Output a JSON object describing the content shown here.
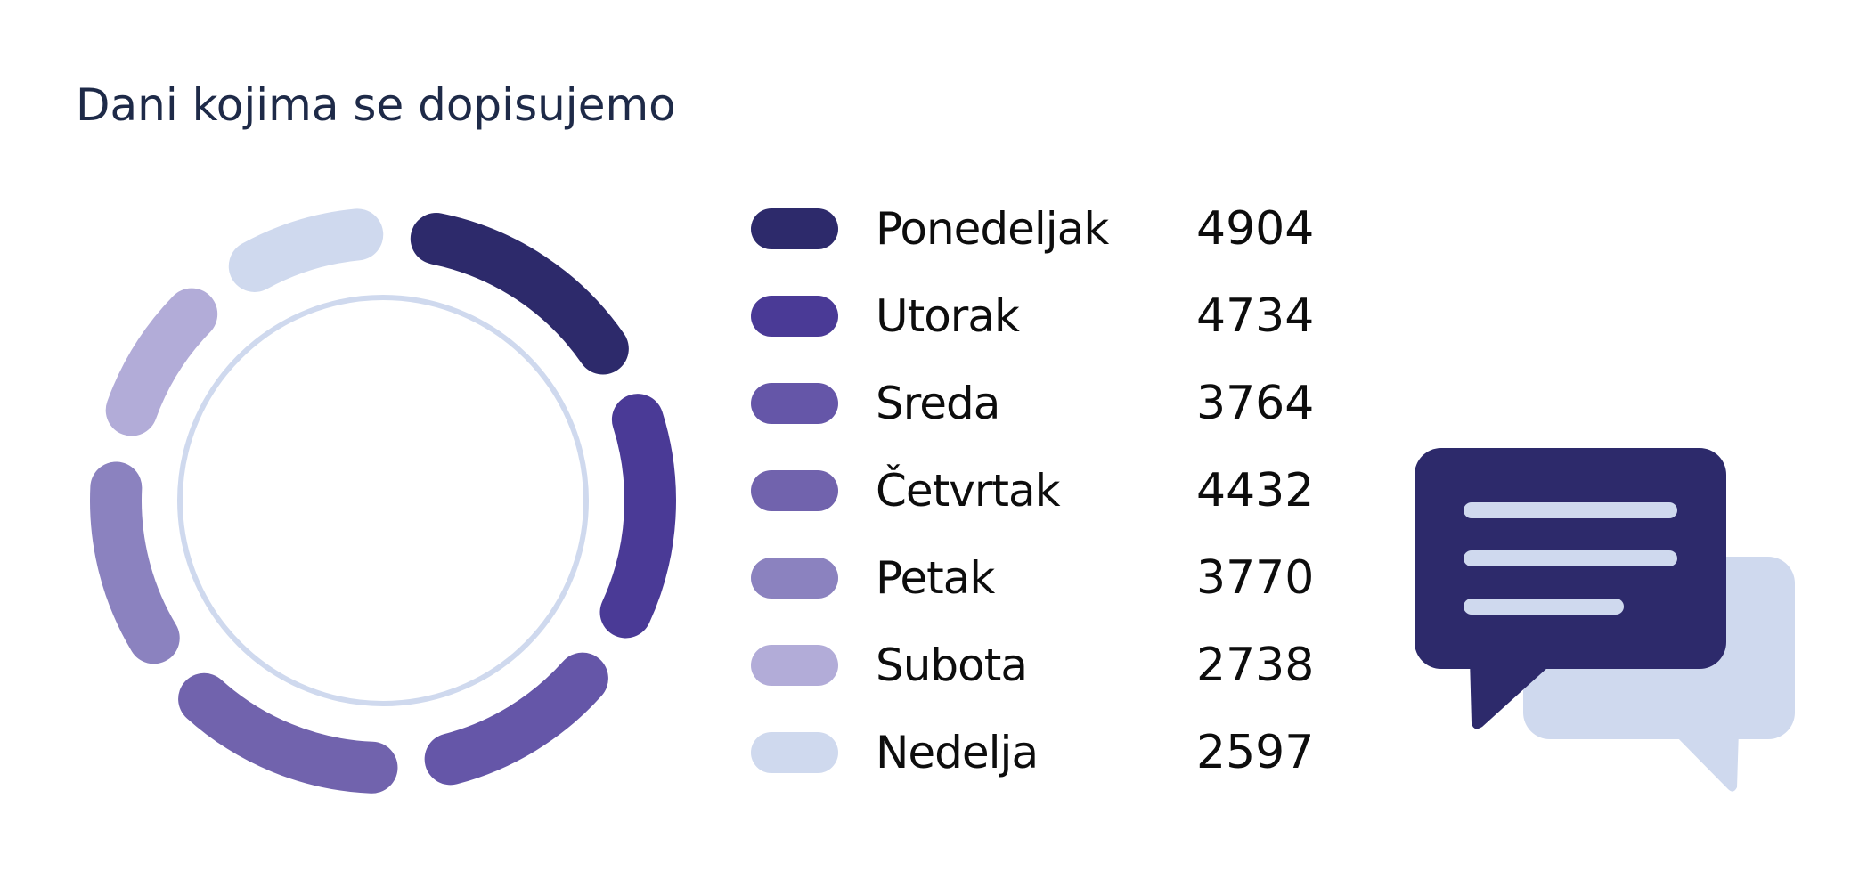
{
  "colors": {
    "title": "#1e2a48",
    "inner_ring": "#cfd9ee",
    "bubble_front": "#2d2a6b",
    "bubble_back": "#cfd9ee",
    "bubble_lines": "#cfd9ee"
  },
  "chart_data": {
    "type": "donut",
    "title": "Dani kojima se dopisujemo",
    "categories": [
      "Ponedeljak",
      "Utorak",
      "Sreda",
      "Četvrtak",
      "Petak",
      "Subota",
      "Nedelja"
    ],
    "values": [
      4904,
      4734,
      3764,
      4432,
      3770,
      2738,
      2597
    ],
    "colors": [
      "#2d2a6b",
      "#4a3a96",
      "#6556a8",
      "#7163ad",
      "#8b82bf",
      "#b2acd8",
      "#cfd9ee"
    ],
    "legend_position": "right"
  },
  "illustration": {
    "icon": "chat-bubbles-icon"
  }
}
